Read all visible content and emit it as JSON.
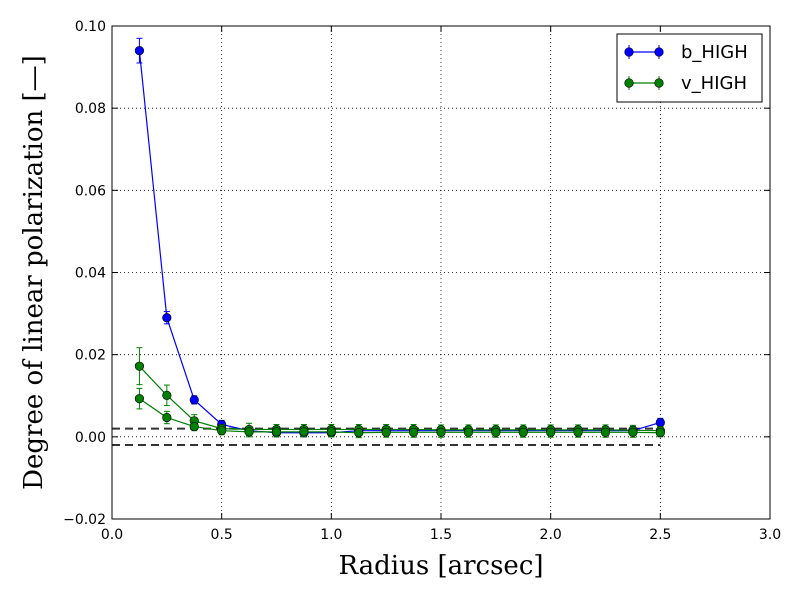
{
  "chart_data": {
    "type": "line",
    "title": "",
    "xlabel": "Radius [arcsec]",
    "ylabel": "Degree of linear polarization [—]",
    "xlim": [
      0.0,
      3.0
    ],
    "ylim": [
      -0.02,
      0.1
    ],
    "xticks": [
      0.0,
      0.5,
      1.0,
      1.5,
      2.0,
      2.5,
      3.0
    ],
    "xtick_labels": [
      "0.0",
      "0.5",
      "1.0",
      "1.5",
      "2.0",
      "2.5",
      "3.0"
    ],
    "yticks": [
      -0.02,
      0.0,
      0.02,
      0.04,
      0.06,
      0.08,
      0.1
    ],
    "ytick_labels": [
      "−0.02",
      "0.00",
      "0.02",
      "0.04",
      "0.06",
      "0.08",
      "0.10"
    ],
    "grid": true,
    "legend_position": "top-right",
    "reference_lines": [
      0.002,
      -0.002
    ],
    "series": [
      {
        "name": "b_HIGH",
        "color": "#0000ff",
        "x": [
          0.125,
          0.25,
          0.375,
          0.5,
          0.625,
          0.75,
          0.875,
          1.0,
          1.125,
          1.25,
          1.375,
          1.5,
          1.625,
          1.75,
          1.875,
          2.0,
          2.125,
          2.25,
          2.375,
          2.5
        ],
        "y": [
          0.094,
          0.029,
          0.009,
          0.003,
          0.0015,
          0.001,
          0.001,
          0.001,
          0.0015,
          0.0015,
          0.0015,
          0.0015,
          0.0015,
          0.0015,
          0.0015,
          0.0015,
          0.0015,
          0.0015,
          0.0015,
          0.0035
        ],
        "err": [
          0.003,
          0.0015,
          0.001,
          0.001,
          0.001,
          0.001,
          0.001,
          0.001,
          0.001,
          0.001,
          0.001,
          0.001,
          0.001,
          0.001,
          0.001,
          0.001,
          0.001,
          0.001,
          0.001,
          0.001
        ]
      },
      {
        "name": "v_HIGH",
        "color": "#008000",
        "x": [
          0.125,
          0.25,
          0.375,
          0.5,
          0.625,
          0.75,
          0.875,
          1.0,
          1.125,
          1.25,
          1.375,
          1.5,
          1.625,
          1.75,
          1.875,
          2.0,
          2.125,
          2.25,
          2.375,
          2.5
        ],
        "y": [
          0.0172,
          0.0101,
          0.0039,
          0.002,
          0.0018,
          0.0018,
          0.0018,
          0.0018,
          0.0018,
          0.0018,
          0.0018,
          0.0017,
          0.0017,
          0.0017,
          0.0017,
          0.0017,
          0.0017,
          0.0017,
          0.0016,
          0.0015
        ],
        "err": [
          0.0045,
          0.0025,
          0.0015,
          0.001,
          0.0015,
          0.0012,
          0.0012,
          0.0012,
          0.0012,
          0.0012,
          0.0012,
          0.0012,
          0.0012,
          0.0012,
          0.0012,
          0.0012,
          0.0012,
          0.0012,
          0.0012,
          0.001
        ]
      },
      {
        "name": "",
        "color": "#008000",
        "x": [
          0.125,
          0.25,
          0.375,
          0.5,
          0.625,
          0.75,
          0.875,
          1.0,
          1.125,
          1.25,
          1.375,
          1.5,
          1.625,
          1.75,
          1.875,
          2.0,
          2.125,
          2.25,
          2.375,
          2.5
        ],
        "y": [
          0.0093,
          0.0047,
          0.0025,
          0.0015,
          0.0012,
          0.0012,
          0.0012,
          0.0012,
          0.001,
          0.0011,
          0.0011,
          0.0011,
          0.0011,
          0.0011,
          0.0011,
          0.0011,
          0.0011,
          0.0011,
          0.0011,
          0.001
        ],
        "err": [
          0.0025,
          0.0015,
          0.001,
          0.001,
          0.0012,
          0.0012,
          0.0012,
          0.0012,
          0.0012,
          0.0012,
          0.0012,
          0.0012,
          0.0012,
          0.0012,
          0.0012,
          0.0012,
          0.0012,
          0.0012,
          0.0012,
          0.001
        ]
      }
    ]
  }
}
